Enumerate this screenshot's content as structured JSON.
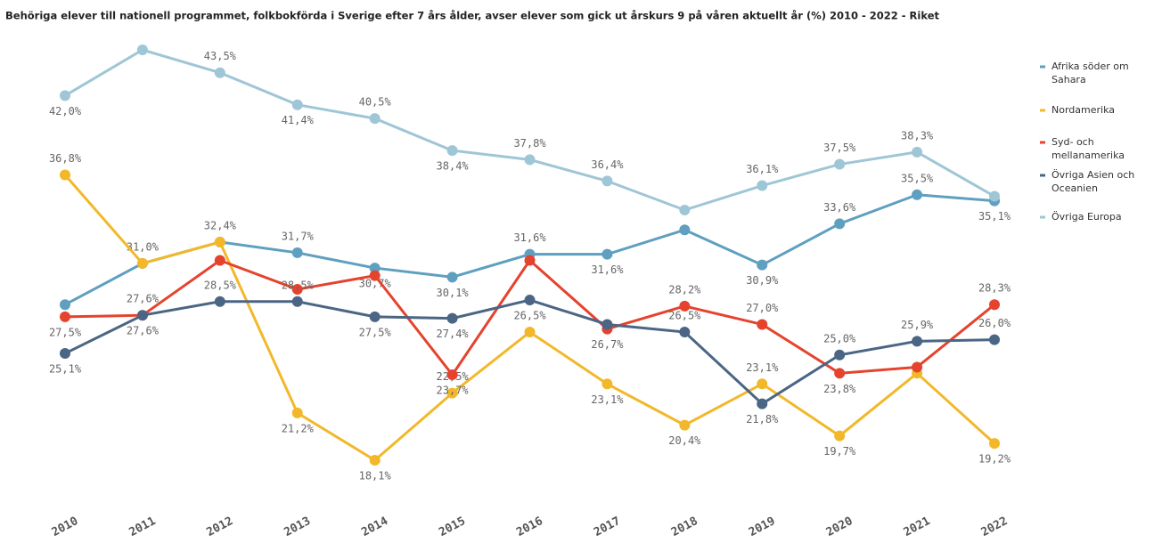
{
  "chart_data": {
    "type": "line",
    "title": "Behöriga elever till nationell programmet, folkbokförda i Sverige efter 7 års ålder, avser elever som gick ut årskurs 9 på våren aktuellt år (%) 2010 - 2022 - Riket",
    "categories": [
      "2010",
      "2011",
      "2012",
      "2013",
      "2014",
      "2015",
      "2016",
      "2017",
      "2018",
      "2019",
      "2020",
      "2021",
      "2022"
    ],
    "series": [
      {
        "name": "Afrika söder om Sahara",
        "color": "#5f9fbf",
        "values": [
          28.3,
          31.0,
          32.4,
          31.7,
          30.7,
          30.1,
          31.6,
          31.6,
          33.2,
          30.9,
          33.6,
          35.5,
          35.1
        ],
        "value_labels": [
          null,
          "31,0%",
          "32,4%",
          "31,7%",
          "30,7%",
          "30,1%",
          "31,6%",
          "31,6%",
          null,
          "30,9%",
          "33,6%",
          "35,5%",
          "35,1%"
        ]
      },
      {
        "name": "Nordamerika",
        "color": "#f2b82a",
        "values": [
          36.8,
          31.0,
          32.4,
          21.2,
          18.1,
          22.5,
          26.5,
          23.1,
          20.4,
          23.1,
          19.7,
          23.8,
          19.2
        ],
        "value_labels": [
          "36,8%",
          null,
          null,
          "21,2%",
          "18,1%",
          "22,5%",
          "26,5%",
          "23,1%",
          "20,4%",
          "23,1%",
          "19,7%",
          null,
          "19,2%"
        ]
      },
      {
        "name": "Syd- och mellanamerika",
        "color": "#e5432d",
        "values": [
          27.5,
          27.6,
          31.2,
          29.3,
          30.2,
          23.7,
          31.2,
          26.7,
          28.2,
          27.0,
          23.8,
          24.2,
          28.3
        ],
        "value_labels": [
          "27,5%",
          "27,6%",
          null,
          null,
          null,
          "23,7%",
          null,
          "26,7%",
          "28,2%",
          "27,0%",
          "23,8%",
          null,
          "28,3%"
        ]
      },
      {
        "name": "Övriga Asien och Oceanien",
        "color": "#4b6584",
        "values": [
          25.1,
          27.6,
          28.5,
          28.5,
          27.5,
          27.4,
          28.6,
          27.0,
          26.5,
          21.8,
          25.0,
          25.9,
          26.0
        ],
        "value_labels": [
          "25,1%",
          "27,6%",
          "28,5%",
          "28,5%",
          "27,5%",
          "27,4%",
          null,
          null,
          "26,5%",
          "21,8%",
          "25,0%",
          "25,9%",
          "26,0%"
        ]
      },
      {
        "name": "Övriga Europa",
        "color": "#9fc6d6",
        "values": [
          42.0,
          45.0,
          43.5,
          41.4,
          40.5,
          38.4,
          37.8,
          36.4,
          34.5,
          36.1,
          37.5,
          38.3,
          35.4
        ],
        "value_labels": [
          "42,0%",
          null,
          "43,5%",
          "41,4%",
          "40,5%",
          "38,4%",
          "37,8%",
          "36,4%",
          null,
          "36,1%",
          "37,5%",
          "38,3%",
          null
        ]
      }
    ]
  }
}
